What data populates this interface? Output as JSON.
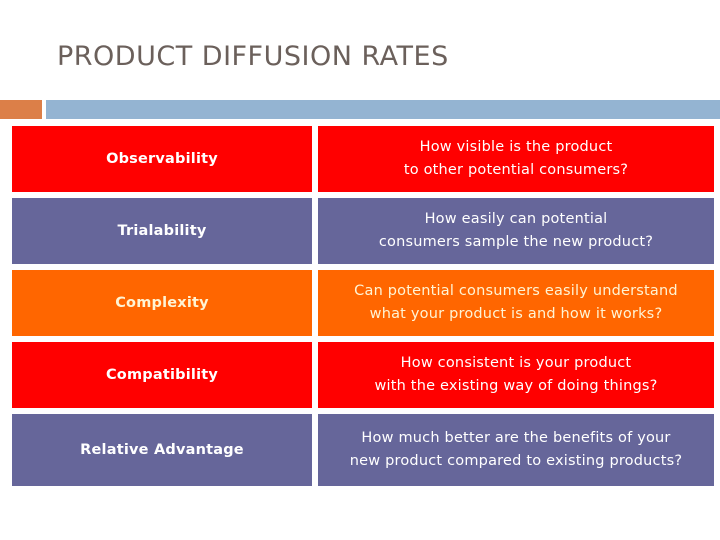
{
  "slide": {
    "title": "PRODUCT DIFFUSION RATES",
    "colors": {
      "title_text": "#6b605b",
      "accent_square": "#dc7f48",
      "accent_bar": "#94b4d2",
      "red": "#ff0000",
      "purple": "#66669a",
      "orange": "#ff6600",
      "white_text": "#ffffff",
      "cream_text": "#fff4d4"
    }
  },
  "table": {
    "rows": [
      {
        "term": "Observability",
        "question": "How visible is the product\nto other potential consumers?",
        "color": "red"
      },
      {
        "term": "Trialability",
        "question": "How easily can potential\nconsumers sample the new product?",
        "color": "purple"
      },
      {
        "term": "Complexity",
        "question": "Can potential consumers easily understand\nwhat your product is and how it works?",
        "color": "orange"
      },
      {
        "term": "Compatibility",
        "question": "How consistent is your product\nwith the existing way of doing things?",
        "color": "red"
      },
      {
        "term": "Relative Advantage",
        "question": "How much better are the benefits of your\nnew product compared to existing products?",
        "color": "purple"
      }
    ]
  }
}
